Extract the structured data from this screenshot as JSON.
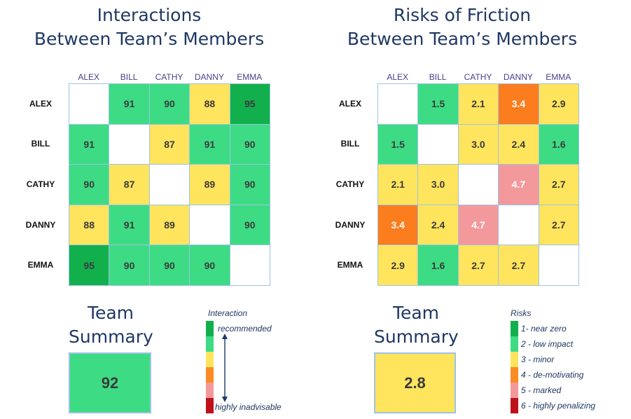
{
  "chart_data": [
    {
      "type": "heatmap",
      "title": [
        "Interactions",
        "Between Team’s Members"
      ],
      "members": [
        "ALEX",
        "BILL",
        "CATHY",
        "DANNY",
        "EMMA"
      ],
      "values": [
        [
          null,
          91,
          90,
          88,
          95
        ],
        [
          91,
          null,
          87,
          91,
          90
        ],
        [
          90,
          87,
          null,
          89,
          90
        ],
        [
          88,
          91,
          89,
          null,
          90
        ],
        [
          95,
          90,
          90,
          90,
          null
        ]
      ],
      "colors": [
        [
          null,
          "#3ddc84",
          "#3ddc84",
          "#ffe45e",
          "#12b04c"
        ],
        [
          "#3ddc84",
          null,
          "#ffe45e",
          "#3ddc84",
          "#3ddc84"
        ],
        [
          "#3ddc84",
          "#ffe45e",
          null,
          "#ffe45e",
          "#3ddc84"
        ],
        [
          "#ffe45e",
          "#3ddc84",
          "#ffe45e",
          null,
          "#3ddc84"
        ],
        [
          "#12b04c",
          "#3ddc84",
          "#3ddc84",
          "#3ddc84",
          null
        ]
      ],
      "summary": {
        "label": [
          "Team",
          "Summary"
        ],
        "value": "92",
        "color": "#3ddc84"
      },
      "legend": {
        "title": "Interaction",
        "top_label": "recommended",
        "bottom_label": "highly inadvisable",
        "colors": [
          "#12b04c",
          "#3ddc84",
          "#ffe45e",
          "#fb8b24",
          "#f4999b",
          "#c0101a"
        ]
      }
    },
    {
      "type": "heatmap",
      "title": [
        "Risks of Friction",
        "Between Team’s Members"
      ],
      "members": [
        "ALEX",
        "BILL",
        "CATHY",
        "DANNY",
        "EMMA"
      ],
      "values": [
        [
          null,
          "1.5",
          "2.1",
          "3.4",
          "2.9"
        ],
        [
          "1.5",
          null,
          "3.0",
          "2.4",
          "1.6"
        ],
        [
          "2.1",
          "3.0",
          null,
          "4.7",
          "2.7"
        ],
        [
          "3.4",
          "2.4",
          "4.7",
          null,
          "2.7"
        ],
        [
          "2.9",
          "1.6",
          "2.7",
          "2.7",
          null
        ]
      ],
      "colors": [
        [
          null,
          "#3ddc84",
          "#ffe45e",
          "#fb7d1d",
          "#ffe45e"
        ],
        [
          "#3ddc84",
          null,
          "#ffe45e",
          "#ffe45e",
          "#3ddc84"
        ],
        [
          "#ffe45e",
          "#ffe45e",
          null,
          "#f4999b",
          "#ffe45e"
        ],
        [
          "#fb7d1d",
          "#ffe45e",
          "#f4999b",
          null,
          "#ffe45e"
        ],
        [
          "#ffe45e",
          "#3ddc84",
          "#ffe45e",
          "#ffe45e",
          null
        ]
      ],
      "summary": {
        "label": [
          "Team",
          "Summary"
        ],
        "value": "2.8",
        "color": "#ffe45e"
      },
      "legend": {
        "title": "Risks",
        "entries": [
          {
            "label": "1- near zero",
            "color": "#12b04c"
          },
          {
            "label": "2 - low impact",
            "color": "#3ddc84"
          },
          {
            "label": "3 - minor",
            "color": "#ffe45e"
          },
          {
            "label": "4 - de-motivating",
            "color": "#fb8b24"
          },
          {
            "label": "5 - marked",
            "color": "#f4999b"
          },
          {
            "label": "6 - highly penalizing",
            "color": "#c0101a"
          }
        ]
      }
    }
  ]
}
